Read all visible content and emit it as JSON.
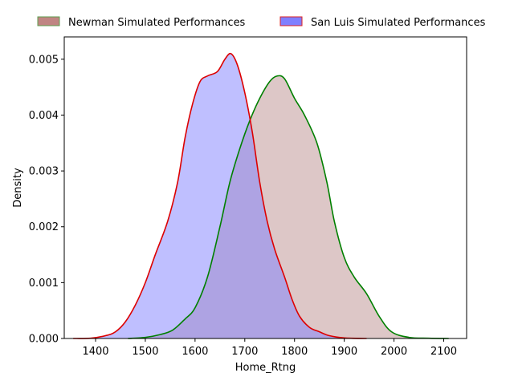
{
  "chart_data": {
    "type": "area",
    "xlabel": "Home_Rtng",
    "ylabel": "Density",
    "xlim": [
      1337,
      2146
    ],
    "ylim": [
      0,
      0.0054
    ],
    "xticks": [
      1400,
      1500,
      1600,
      1700,
      1800,
      1900,
      2000,
      2100
    ],
    "yticks": [
      0.0,
      0.001,
      0.002,
      0.003,
      0.004,
      0.005
    ],
    "ytick_labels": [
      "0.000",
      "0.001",
      "0.002",
      "0.003",
      "0.004",
      "0.005"
    ],
    "grid": false,
    "legend_position": "top, outside plot",
    "series": [
      {
        "name": "Newman Simulated Performances",
        "fill_color": "#bc8f8f",
        "fill_opacity": 0.5,
        "line_color": "#008000",
        "legend_patch_color": "#c08583",
        "legend_edge_color": "#5e9e4e",
        "points": [
          [
            1465,
            0.0
          ],
          [
            1500,
            2e-05
          ],
          [
            1530,
            7e-05
          ],
          [
            1555,
            0.00015
          ],
          [
            1580,
            0.00035
          ],
          [
            1600,
            0.00055
          ],
          [
            1625,
            0.0011
          ],
          [
            1650,
            0.002
          ],
          [
            1670,
            0.0028
          ],
          [
            1690,
            0.0034
          ],
          [
            1710,
            0.0039
          ],
          [
            1730,
            0.0043
          ],
          [
            1750,
            0.0046
          ],
          [
            1765,
            0.0047
          ],
          [
            1780,
            0.00465
          ],
          [
            1800,
            0.0043
          ],
          [
            1820,
            0.004
          ],
          [
            1845,
            0.0035
          ],
          [
            1865,
            0.0028
          ],
          [
            1880,
            0.0021
          ],
          [
            1900,
            0.00145
          ],
          [
            1920,
            0.0011
          ],
          [
            1945,
            0.0008
          ],
          [
            1970,
            0.0004
          ],
          [
            1995,
            0.00012
          ],
          [
            2030,
            2e-05
          ],
          [
            2070,
            5e-06
          ],
          [
            2110,
            0.0
          ]
        ]
      },
      {
        "name": "San Luis Simulated Performances",
        "fill_color": "#8080ff",
        "fill_opacity": 0.5,
        "line_color": "#dd0000",
        "legend_patch_color": "#7f7fff",
        "legend_edge_color": "#dd2222",
        "points": [
          [
            1355,
            0.0
          ],
          [
            1390,
            5e-06
          ],
          [
            1420,
            5e-05
          ],
          [
            1440,
            0.00012
          ],
          [
            1460,
            0.0003
          ],
          [
            1480,
            0.0006
          ],
          [
            1500,
            0.001
          ],
          [
            1520,
            0.0015
          ],
          [
            1545,
            0.0021
          ],
          [
            1565,
            0.0028
          ],
          [
            1580,
            0.0036
          ],
          [
            1595,
            0.0042
          ],
          [
            1610,
            0.0046
          ],
          [
            1625,
            0.0047
          ],
          [
            1645,
            0.00478
          ],
          [
            1660,
            0.005
          ],
          [
            1672,
            0.0051
          ],
          [
            1685,
            0.0049
          ],
          [
            1700,
            0.0044
          ],
          [
            1715,
            0.0037
          ],
          [
            1730,
            0.0028
          ],
          [
            1745,
            0.0021
          ],
          [
            1760,
            0.0016
          ],
          [
            1780,
            0.0011
          ],
          [
            1795,
            0.0007
          ],
          [
            1810,
            0.0004
          ],
          [
            1830,
            0.0002
          ],
          [
            1850,
            0.00012
          ],
          [
            1870,
            5e-05
          ],
          [
            1900,
            1e-05
          ],
          [
            1945,
            0.0
          ]
        ]
      }
    ]
  }
}
